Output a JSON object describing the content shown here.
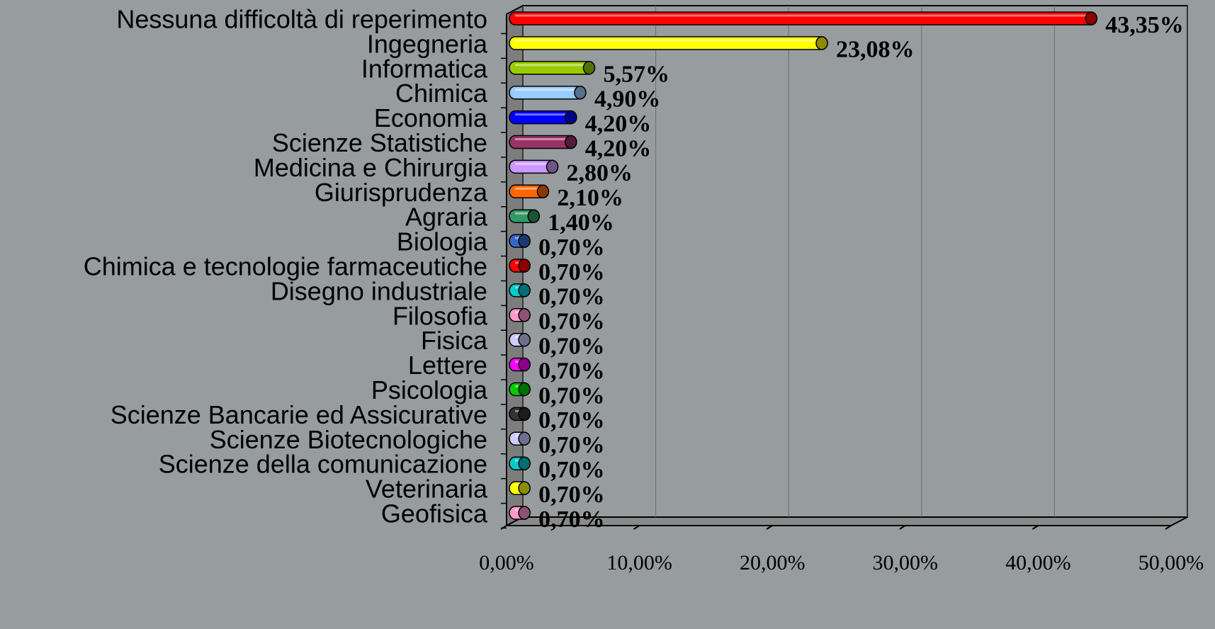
{
  "chart_data": {
    "type": "bar",
    "orientation": "horizontal",
    "categories": [
      "Nessuna difficoltà di reperimento",
      "Ingegneria",
      "Informatica",
      "Chimica",
      "Economia",
      "Scienze Statistiche",
      "Medicina e Chirurgia",
      "Giurisprudenza",
      "Agraria",
      "Biologia",
      "Chimica e tecnologie farmaceutiche",
      "Disegno industriale",
      "Filosofia",
      "Fisica",
      "Lettere",
      "Psicologia",
      "Scienze Bancarie ed Assicurative",
      "Scienze Biotecnologiche",
      "Scienze della comunicazione",
      "Veterinaria",
      "Geofisica"
    ],
    "values": [
      43.35,
      23.08,
      5.57,
      4.9,
      4.2,
      4.2,
      2.8,
      2.1,
      1.4,
      0.7,
      0.7,
      0.7,
      0.7,
      0.7,
      0.7,
      0.7,
      0.7,
      0.7,
      0.7,
      0.7,
      0.7
    ],
    "value_labels": [
      "43,35%",
      "23,08%",
      "5,57%",
      "4,90%",
      "4,20%",
      "4,20%",
      "2,80%",
      "2,10%",
      "1,40%",
      "0,70%",
      "0,70%",
      "0,70%",
      "0,70%",
      "0,70%",
      "0,70%",
      "0,70%",
      "0,70%",
      "0,70%",
      "0,70%",
      "0,70%",
      "0,70%"
    ],
    "colors": [
      "#ff0000",
      "#ffff00",
      "#99cc00",
      "#99ccff",
      "#0000ff",
      "#993366",
      "#cc99ff",
      "#ff6600",
      "#339966",
      "#3366cc",
      "#ff0000",
      "#00cccc",
      "#ff99cc",
      "#ccccff",
      "#ff00ff",
      "#00cc00",
      "#333333",
      "#ccccff",
      "#00cccc",
      "#ffff00",
      "#ff99cc"
    ],
    "xlim": [
      0,
      50
    ],
    "xticks": [
      {
        "value": 0,
        "label": "0,00%"
      },
      {
        "value": 10,
        "label": "10,00%"
      },
      {
        "value": 20,
        "label": "20,00%"
      },
      {
        "value": 30,
        "label": "30,00%"
      },
      {
        "value": 40,
        "label": "40,00%"
      },
      {
        "value": 50,
        "label": "50,00%"
      }
    ],
    "grid": true
  }
}
